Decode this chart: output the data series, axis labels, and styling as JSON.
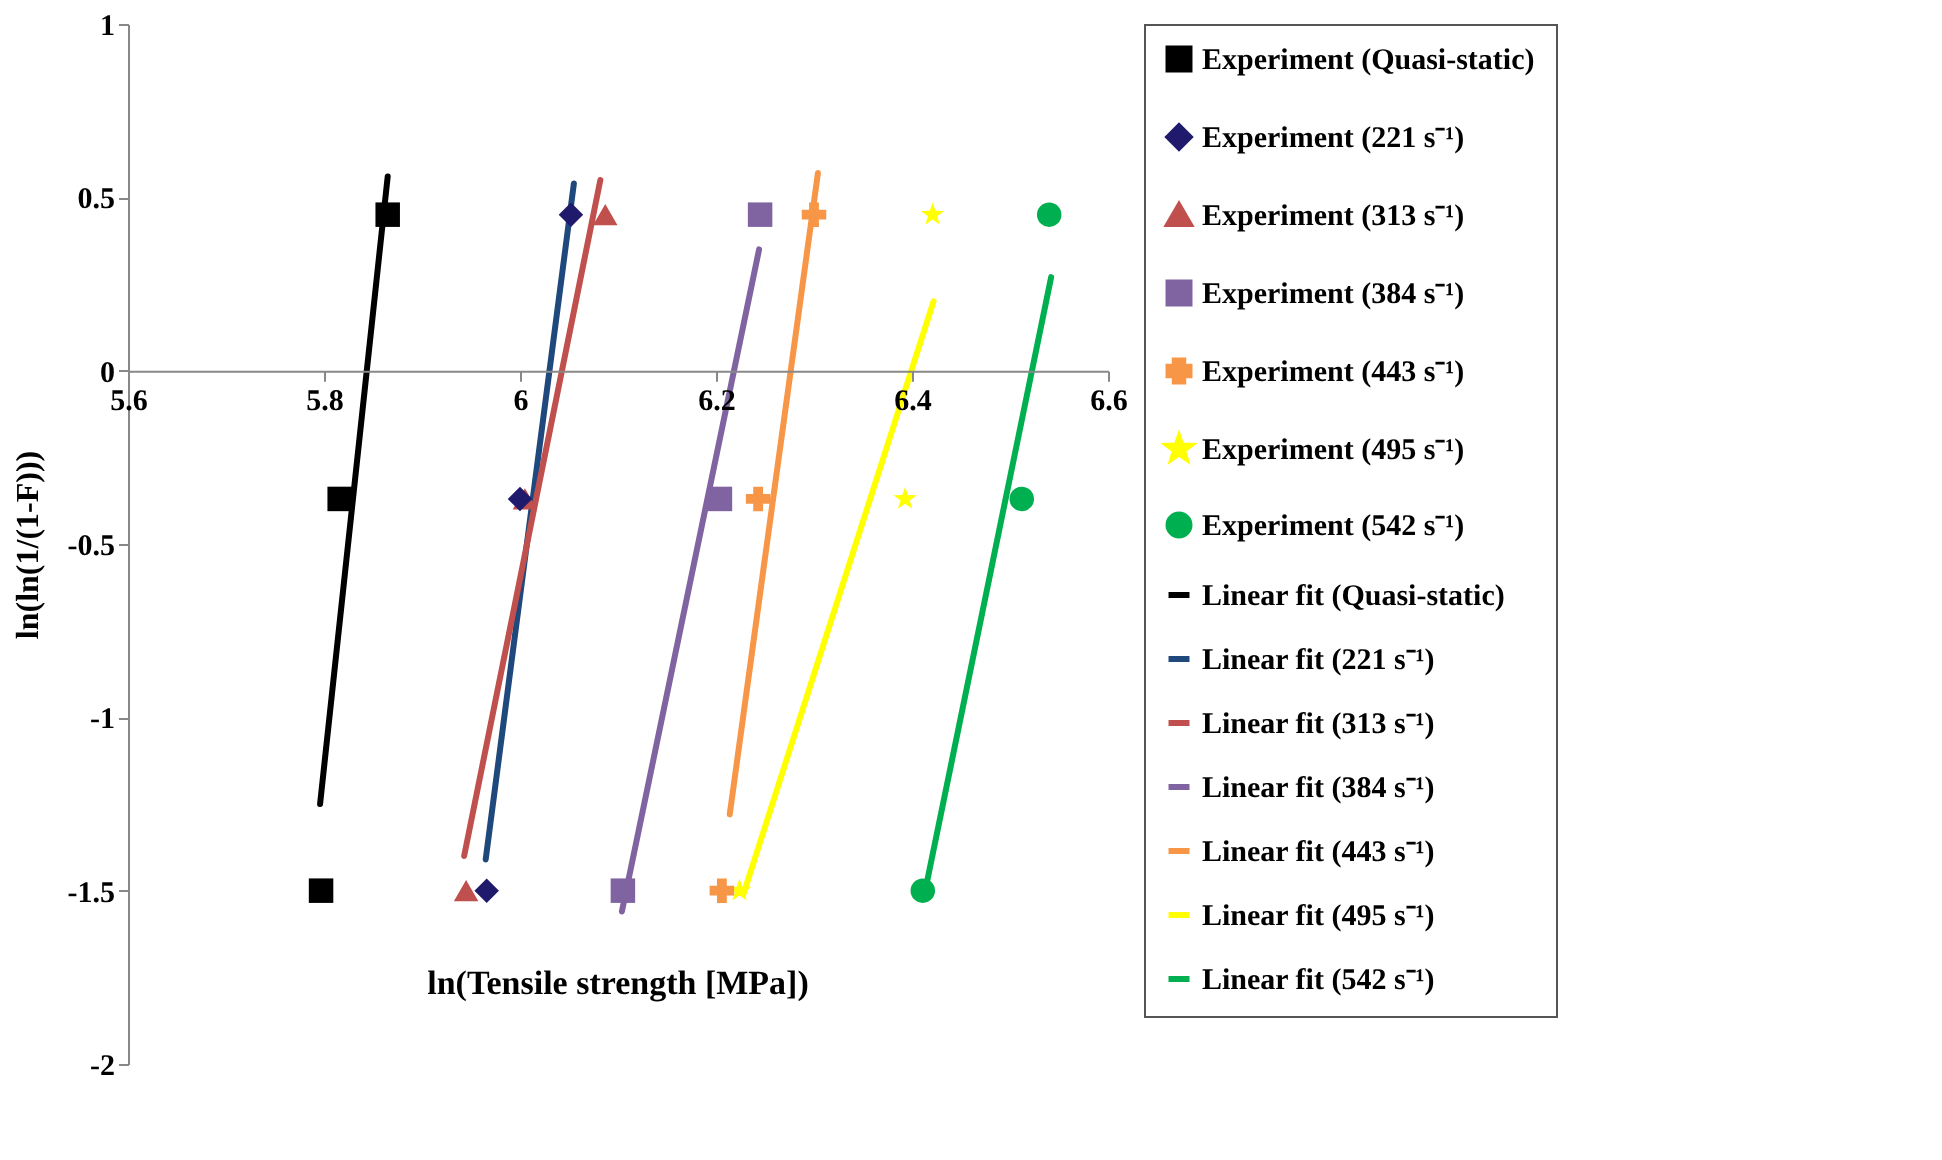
{
  "chart_data": {
    "type": "scatter",
    "xlabel": "ln(Tensile strength [MPa])",
    "ylabel": "ln(ln(1/(1-F)))",
    "xlim": [
      5.6,
      6.6
    ],
    "xticks": [
      5.6,
      5.8,
      6,
      6.2,
      6.4,
      6.6
    ],
    "ylim": [
      -2,
      1
    ],
    "yticks": [
      -2,
      -1.5,
      -1,
      -0.5,
      0,
      0.5,
      1
    ],
    "grid": false,
    "legend": "right",
    "series": [
      {
        "name": "Experiment (Quasi-static)",
        "marker": "square",
        "color": "#000000",
        "x": [
          5.865,
          5.816,
          5.797
        ],
        "values": [
          0.45,
          -0.37,
          -1.5
        ]
      },
      {
        "name": "Experiment (221 s⁻¹)",
        "marker": "diamond",
        "color": "#1f1a6b",
        "x": [
          6.052,
          6.0,
          5.966
        ],
        "values": [
          0.45,
          -0.37,
          -1.5
        ]
      },
      {
        "name": "Experiment (313 s⁻¹)",
        "marker": "triangle",
        "color": "#c0504d",
        "x": [
          6.087,
          6.005,
          5.945
        ],
        "values": [
          0.45,
          -0.37,
          -1.5
        ]
      },
      {
        "name": "Experiment (384 s⁻¹)",
        "marker": "square",
        "color": "#8064a2",
        "x": [
          6.245,
          6.204,
          6.105
        ],
        "values": [
          0.45,
          -0.37,
          -1.5
        ]
      },
      {
        "name": "Experiment (443 s⁻¹)",
        "marker": "cross",
        "color": "#f79646",
        "x": [
          6.3,
          6.243,
          6.206
        ],
        "values": [
          0.45,
          -0.37,
          -1.5
        ]
      },
      {
        "name": "Experiment (495 s⁻¹)",
        "marker": "star",
        "color": "#ffff00",
        "x": [
          6.421,
          6.393,
          6.224
        ],
        "values": [
          0.45,
          -0.37,
          -1.5
        ]
      },
      {
        "name": "Experiment (542 s⁻¹)",
        "marker": "circle",
        "color": "#00b050",
        "x": [
          6.54,
          6.512,
          6.411
        ],
        "values": [
          0.45,
          -0.37,
          -1.5
        ]
      },
      {
        "name": "Linear fit (Quasi-static)",
        "type": "line",
        "color": "#000000",
        "x": [
          5.796,
          5.865
        ],
        "values": [
          -1.25,
          0.56
        ]
      },
      {
        "name": "Linear fit (221 s⁻¹)",
        "type": "line",
        "color": "#1f497d",
        "x": [
          5.965,
          6.055
        ],
        "values": [
          -1.41,
          0.54
        ]
      },
      {
        "name": "Linear fit (313 s⁻¹)",
        "type": "line",
        "color": "#c0504d",
        "x": [
          5.943,
          6.082
        ],
        "values": [
          -1.4,
          0.55
        ]
      },
      {
        "name": "Linear fit (384 s⁻¹)",
        "type": "line",
        "color": "#8064a2",
        "x": [
          6.104,
          6.244
        ],
        "values": [
          -1.56,
          0.35
        ]
      },
      {
        "name": "Linear fit (443 s⁻¹)",
        "type": "line",
        "color": "#f79646",
        "x": [
          6.214,
          6.304
        ],
        "values": [
          -1.28,
          0.57
        ]
      },
      {
        "name": "Linear fit (495 s⁻¹)",
        "type": "line",
        "color": "#ffff00",
        "x": [
          6.228,
          6.422
        ],
        "values": [
          -1.51,
          0.2
        ]
      },
      {
        "name": "Linear fit (542 s⁻¹)",
        "type": "line",
        "color": "#00b050",
        "x": [
          6.412,
          6.542
        ],
        "values": [
          -1.52,
          0.27
        ]
      }
    ]
  }
}
